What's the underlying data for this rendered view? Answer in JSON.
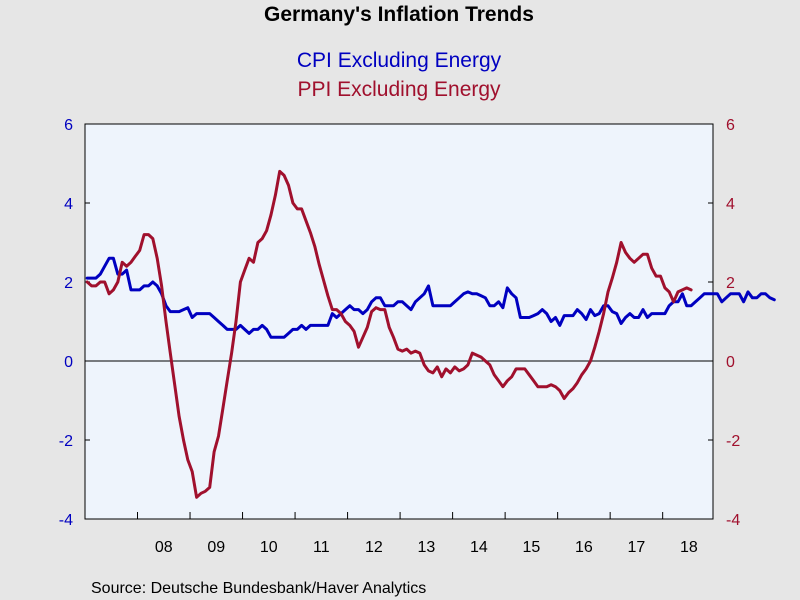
{
  "chart_data": {
    "type": "line",
    "title": "Germany's Inflation Trends",
    "source": "Source:  Deutsche Bundesbank/Haver Analytics",
    "x_start_year": 2007,
    "x_start_month": 1,
    "x_tick_labels": [
      "08",
      "09",
      "10",
      "11",
      "12",
      "13",
      "14",
      "15",
      "16",
      "17",
      "18"
    ],
    "ylim_left": [
      -4,
      6
    ],
    "ylim_right": [
      -4,
      6
    ],
    "y_ticks": [
      -4,
      -2,
      0,
      2,
      4,
      6
    ],
    "zero_line": true,
    "grid": false,
    "legend_placement": "top-center",
    "series": [
      {
        "name": "CPI Excluding Energy",
        "axis": "left",
        "color": "#0000c0",
        "values": [
          2.1,
          2.1,
          2.1,
          2.2,
          2.4,
          2.6,
          2.6,
          2.2,
          2.2,
          2.3,
          1.8,
          1.8,
          1.8,
          1.9,
          1.9,
          2.0,
          1.9,
          1.7,
          1.4,
          1.25,
          1.25,
          1.25,
          1.3,
          1.35,
          1.1,
          1.2,
          1.2,
          1.2,
          1.2,
          1.1,
          1.0,
          0.9,
          0.8,
          0.8,
          0.8,
          0.9,
          0.8,
          0.7,
          0.8,
          0.8,
          0.9,
          0.8,
          0.6,
          0.6,
          0.6,
          0.6,
          0.7,
          0.8,
          0.8,
          0.9,
          0.8,
          0.9,
          0.9,
          0.9,
          0.9,
          0.9,
          1.2,
          1.1,
          1.2,
          1.3,
          1.4,
          1.3,
          1.3,
          1.2,
          1.3,
          1.5,
          1.6,
          1.6,
          1.4,
          1.4,
          1.4,
          1.5,
          1.5,
          1.4,
          1.3,
          1.5,
          1.6,
          1.7,
          1.9,
          1.4,
          1.4,
          1.4,
          1.4,
          1.4,
          1.5,
          1.6,
          1.7,
          1.75,
          1.7,
          1.7,
          1.65,
          1.6,
          1.4,
          1.4,
          1.5,
          1.35,
          1.85,
          1.7,
          1.6,
          1.1,
          1.1,
          1.1,
          1.15,
          1.2,
          1.3,
          1.2,
          1.0,
          1.1,
          0.9,
          1.15,
          1.15,
          1.15,
          1.3,
          1.2,
          1.05,
          1.3,
          1.15,
          1.2,
          1.4,
          1.4,
          1.25,
          1.2,
          0.95,
          1.1,
          1.2,
          1.1,
          1.1,
          1.3,
          1.1,
          1.2,
          1.2,
          1.2,
          1.2,
          1.4,
          1.5,
          1.5,
          1.7,
          1.4,
          1.4,
          1.5,
          1.6,
          1.7,
          1.7,
          1.7,
          1.7,
          1.5,
          1.6,
          1.7,
          1.7,
          1.7,
          1.5,
          1.75,
          1.6,
          1.6,
          1.7,
          1.7,
          1.6,
          1.55
        ]
      },
      {
        "name": "PPI Excluding Energy",
        "axis": "right",
        "color": "#a0102d",
        "values": [
          2.0,
          1.9,
          1.9,
          2.0,
          2.0,
          1.7,
          1.8,
          2.0,
          2.5,
          2.4,
          2.5,
          2.65,
          2.8,
          3.2,
          3.2,
          3.1,
          2.6,
          1.9,
          1.0,
          0.2,
          -0.6,
          -1.4,
          -2.0,
          -2.5,
          -2.8,
          -3.45,
          -3.35,
          -3.3,
          -3.2,
          -2.3,
          -1.9,
          -1.2,
          -0.5,
          0.2,
          1.0,
          2.0,
          2.3,
          2.6,
          2.5,
          3.0,
          3.1,
          3.3,
          3.7,
          4.2,
          4.8,
          4.7,
          4.45,
          4.0,
          3.85,
          3.85,
          3.55,
          3.25,
          2.9,
          2.45,
          2.05,
          1.65,
          1.3,
          1.3,
          1.2,
          1.0,
          0.9,
          0.75,
          0.35,
          0.6,
          0.85,
          1.25,
          1.35,
          1.3,
          1.3,
          0.85,
          0.6,
          0.3,
          0.25,
          0.3,
          0.2,
          0.25,
          0.2,
          -0.1,
          -0.25,
          -0.3,
          -0.15,
          -0.4,
          -0.2,
          -0.3,
          -0.15,
          -0.25,
          -0.2,
          -0.1,
          0.2,
          0.15,
          0.1,
          0.0,
          -0.1,
          -0.35,
          -0.5,
          -0.65,
          -0.5,
          -0.4,
          -0.2,
          -0.2,
          -0.2,
          -0.35,
          -0.5,
          -0.65,
          -0.65,
          -0.65,
          -0.6,
          -0.65,
          -0.75,
          -0.95,
          -0.8,
          -0.7,
          -0.55,
          -0.35,
          -0.2,
          0.0,
          0.35,
          0.75,
          1.2,
          1.75,
          2.1,
          2.5,
          3.0,
          2.75,
          2.6,
          2.5,
          2.6,
          2.7,
          2.7,
          2.35,
          2.15,
          2.15,
          1.85,
          1.75,
          1.5,
          1.75,
          1.8,
          1.85,
          1.8
        ]
      }
    ]
  }
}
